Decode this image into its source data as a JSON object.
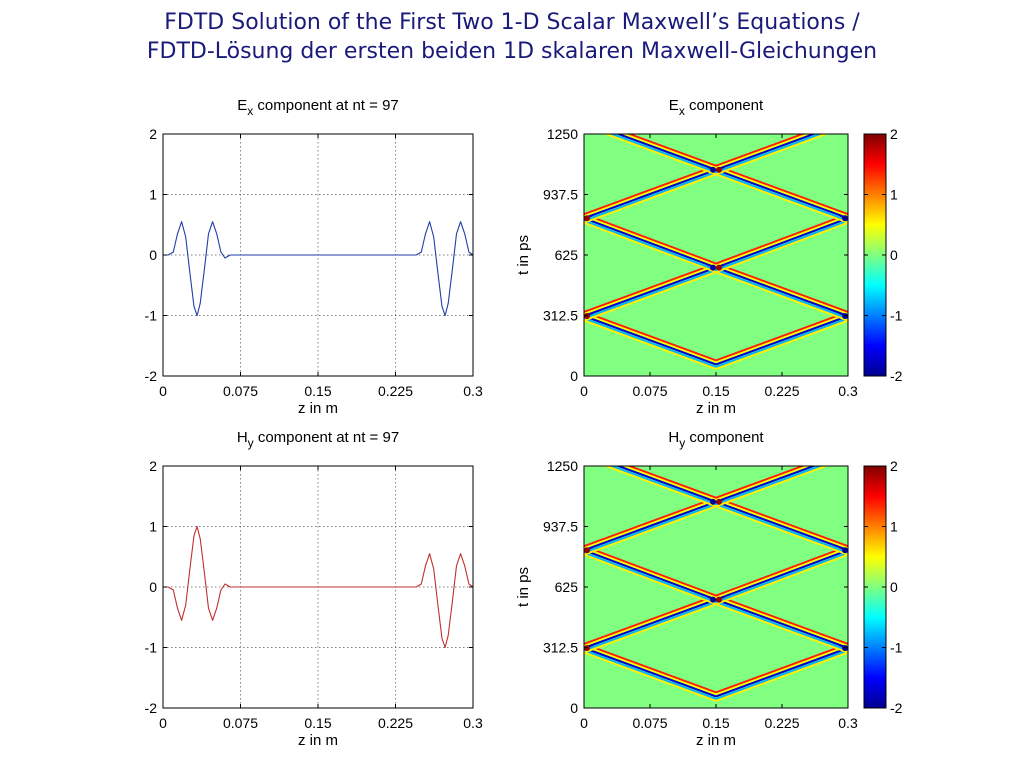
{
  "page": {
    "title_line1": "FDTD Solution of the First Two 1-D Scalar Maxwell’s Equations /",
    "title_line2": "FDTD-Lösung der ersten beiden 1D skalaren Maxwell-Gleichungen"
  },
  "chart_data": [
    {
      "id": "ex-line",
      "type": "line",
      "title_main": "E",
      "title_sub": "x",
      "title_rest": " component at nt = 97",
      "xlabel": "z in m",
      "ylabel": "",
      "xlim": [
        0,
        0.3
      ],
      "ylim": [
        -2,
        2
      ],
      "xticks": [
        0,
        0.075,
        0.15,
        0.225,
        0.3
      ],
      "xtick_labels": [
        "0",
        "0.075",
        "0.15",
        "0.225",
        "0.3"
      ],
      "yticks": [
        -2,
        -1,
        0,
        1,
        2
      ],
      "ytick_labels": [
        "-2",
        "-1",
        "0",
        "1",
        "2"
      ],
      "grid": true,
      "color": "#1f3fa8",
      "series": [
        {
          "x": [
            0.0,
            0.005,
            0.01,
            0.014,
            0.018,
            0.022,
            0.026,
            0.03,
            0.033,
            0.036,
            0.04,
            0.044,
            0.048,
            0.052,
            0.056,
            0.06,
            0.065,
            0.07,
            0.1,
            0.15,
            0.2,
            0.24,
            0.245,
            0.25,
            0.254,
            0.258,
            0.262,
            0.266,
            0.27,
            0.273,
            0.276,
            0.28,
            0.284,
            0.288,
            0.292,
            0.296,
            0.3
          ],
          "y": [
            0.0,
            0.0,
            0.05,
            0.35,
            0.55,
            0.3,
            -0.3,
            -0.85,
            -1.0,
            -0.8,
            -0.25,
            0.35,
            0.55,
            0.35,
            0.05,
            -0.05,
            0.0,
            0.0,
            0.0,
            0.0,
            0.0,
            0.0,
            0.0,
            0.05,
            0.35,
            0.55,
            0.3,
            -0.3,
            -0.85,
            -1.0,
            -0.8,
            -0.25,
            0.35,
            0.55,
            0.35,
            0.05,
            0.0
          ]
        }
      ]
    },
    {
      "id": "ex-heat",
      "type": "heatmap",
      "title_main": "E",
      "title_sub": "x",
      "title_rest": " component",
      "xlabel": "z in m",
      "ylabel": "t in ps",
      "xlim": [
        0,
        0.3
      ],
      "ylim": [
        0,
        1250
      ],
      "xticks": [
        0,
        0.075,
        0.15,
        0.225,
        0.3
      ],
      "xtick_labels": [
        "0",
        "0.075",
        "0.15",
        "0.225",
        "0.3"
      ],
      "yticks": [
        0,
        312.5,
        625,
        937.5,
        1250
      ],
      "ytick_labels": [
        "0",
        "312.5",
        "625",
        "937.5",
        "1250"
      ],
      "clim": [
        -2,
        2
      ],
      "colorbar_ticks": [
        -2,
        -1,
        0,
        1,
        2
      ],
      "colorbar_labels": [
        "-2",
        "-1",
        "0",
        "1",
        "2"
      ],
      "vertices_t": [
        60,
        310,
        560,
        815,
        1065
      ],
      "source_z": 0.15
    },
    {
      "id": "hy-line",
      "type": "line",
      "title_main": "H",
      "title_sub": "y",
      "title_rest": " component at nt = 97",
      "xlabel": "z in m",
      "ylabel": "",
      "xlim": [
        0,
        0.3
      ],
      "ylim": [
        -2,
        2
      ],
      "xticks": [
        0,
        0.075,
        0.15,
        0.225,
        0.3
      ],
      "xtick_labels": [
        "0",
        "0.075",
        "0.15",
        "0.225",
        "0.3"
      ],
      "yticks": [
        -2,
        -1,
        0,
        1,
        2
      ],
      "ytick_labels": [
        "-2",
        "-1",
        "0",
        "1",
        "2"
      ],
      "grid": true,
      "color": "#c03030",
      "series": [
        {
          "x": [
            0.0,
            0.005,
            0.01,
            0.014,
            0.018,
            0.022,
            0.026,
            0.03,
            0.033,
            0.036,
            0.04,
            0.044,
            0.048,
            0.052,
            0.056,
            0.06,
            0.065,
            0.07,
            0.1,
            0.15,
            0.2,
            0.24,
            0.245,
            0.25,
            0.254,
            0.258,
            0.262,
            0.266,
            0.27,
            0.273,
            0.276,
            0.28,
            0.284,
            0.288,
            0.292,
            0.296,
            0.3
          ],
          "y": [
            0.0,
            0.0,
            -0.05,
            -0.35,
            -0.55,
            -0.3,
            0.3,
            0.85,
            1.0,
            0.8,
            0.25,
            -0.35,
            -0.55,
            -0.35,
            -0.05,
            0.05,
            0.0,
            0.0,
            0.0,
            0.0,
            0.0,
            0.0,
            0.0,
            0.05,
            0.35,
            0.55,
            0.3,
            -0.3,
            -0.85,
            -1.0,
            -0.8,
            -0.25,
            0.35,
            0.55,
            0.35,
            0.05,
            0.0
          ]
        }
      ]
    },
    {
      "id": "hy-heat",
      "type": "heatmap",
      "title_main": "H",
      "title_sub": "y",
      "title_rest": " component",
      "xlabel": "z in m",
      "ylabel": "t in ps",
      "xlim": [
        0,
        0.3
      ],
      "ylim": [
        0,
        1250
      ],
      "xticks": [
        0,
        0.075,
        0.15,
        0.225,
        0.3
      ],
      "xtick_labels": [
        "0",
        "0.075",
        "0.15",
        "0.225",
        "0.3"
      ],
      "yticks": [
        0,
        312.5,
        625,
        937.5,
        1250
      ],
      "ytick_labels": [
        "0",
        "312.5",
        "625",
        "937.5",
        "1250"
      ],
      "clim": [
        -2,
        2
      ],
      "colorbar_ticks": [
        -2,
        -1,
        0,
        1,
        2
      ],
      "colorbar_labels": [
        "-2",
        "-1",
        "0",
        "1",
        "2"
      ],
      "vertices_t": [
        60,
        310,
        560,
        815,
        1065
      ],
      "source_z": 0.15
    }
  ]
}
